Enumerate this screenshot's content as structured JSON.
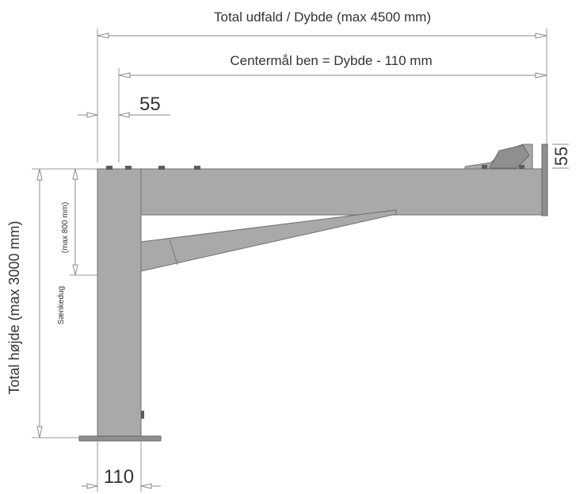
{
  "labels": {
    "total_depth": "Total udfald / Dybde (max 4500 mm)",
    "center_leg": "Centermål ben = Dybde - 110 mm",
    "offset_left": "55",
    "offset_right": "55",
    "total_height": "Total højde (max 3000 mm)",
    "lowering_max": "(max 800 mm)",
    "lowering": "Sænkedug",
    "base_width": "110"
  },
  "colors": {
    "steel": "#a9a9a9",
    "steel_edge": "#6f6f6f",
    "dimension_line": "#8a8a8a",
    "text": "#333333"
  }
}
